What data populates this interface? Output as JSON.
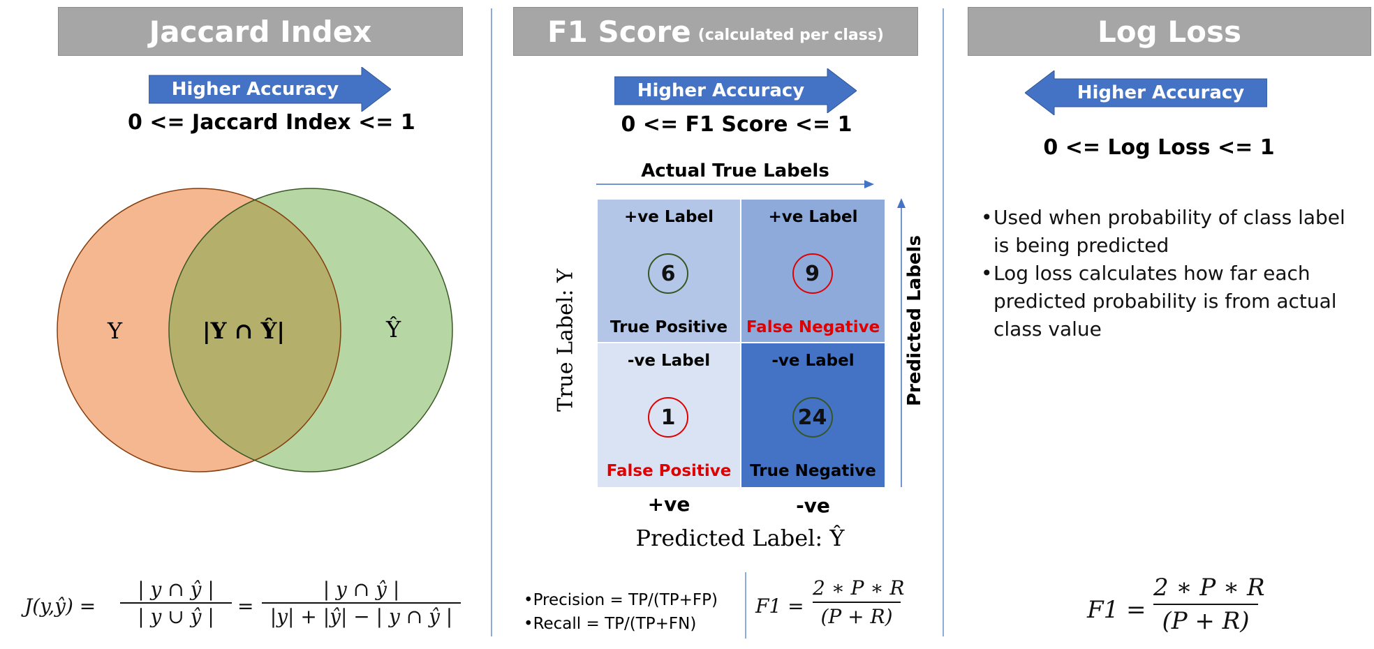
{
  "panels": {
    "jaccard": {
      "title": "Jaccard Index",
      "arrow_label": "Higher Accuracy",
      "range": "0 <= Jaccard Index <= 1",
      "venn": {
        "left": "Y",
        "center": "|Y ∩ Ŷ|",
        "right": "Ŷ",
        "left_color": "#f4b78f",
        "right_color": "#b6d7a3"
      },
      "formula": {
        "lhs": "J(y,ŷ) =",
        "frac1_num": "| y ∩ ŷ |",
        "frac1_den": "| y ∪ ŷ |",
        "eq": "=",
        "frac2_num": "| y ∩ ŷ |",
        "frac2_den": "|y| + |ŷ| − | y ∩ ŷ |"
      }
    },
    "f1": {
      "title": "F1 Score",
      "title_sub": "(calculated per class)",
      "arrow_label": "Higher Accuracy",
      "range": "0 <= F1 Score <= 1",
      "top_axis": "Actual True Labels",
      "right_axis": "Predicted Labels",
      "left_axis": "True Label: Y",
      "bottom_axis": "Predicted Label: Ŷ",
      "col_labels": [
        "+ve",
        "-ve"
      ],
      "matrix": [
        {
          "top": "+ve Label",
          "value": "6",
          "bottom": "True Positive",
          "bg": "#b4c6e7",
          "circle": "#375623",
          "bottom_color": "#000000"
        },
        {
          "top": "+ve Label",
          "value": "9",
          "bottom": "False Negative",
          "bg": "#8eaadb",
          "circle": "#e00000",
          "bottom_color": "#e00000"
        },
        {
          "top": "-ve Label",
          "value": "1",
          "bottom": "False Positive",
          "bg": "#dae3f3",
          "circle": "#e00000",
          "bottom_color": "#e00000"
        },
        {
          "top": "-ve Label",
          "value": "24",
          "bottom": "True Negative",
          "bg": "#4472c4",
          "circle": "#375623",
          "bottom_color": "#000000"
        }
      ],
      "precision": "•Precision = TP/(TP+FP)",
      "recall": "•Recall = TP/(TP+FN)",
      "formula": {
        "lhs": "F1 =",
        "num": "2 ∗ P ∗ R",
        "den": "(P + R)"
      }
    },
    "logloss": {
      "title": "Log Loss",
      "arrow_label": "Higher Accuracy",
      "range": "0 <= Log Loss <= 1",
      "bullets": [
        {
          "mark": "•",
          "text": "Used when probability of class label is being predicted"
        },
        {
          "mark": "•",
          "text": "Log loss calculates how far each predicted probability is from actual class value"
        }
      ],
      "formula": {
        "lhs": "F1 =",
        "num": "2 ∗ P ∗ R",
        "den": "(P + R)"
      }
    }
  },
  "colors": {
    "header_bg": "#a6a6a6",
    "arrow": "#4472c4",
    "divider": "#8eaadb"
  }
}
